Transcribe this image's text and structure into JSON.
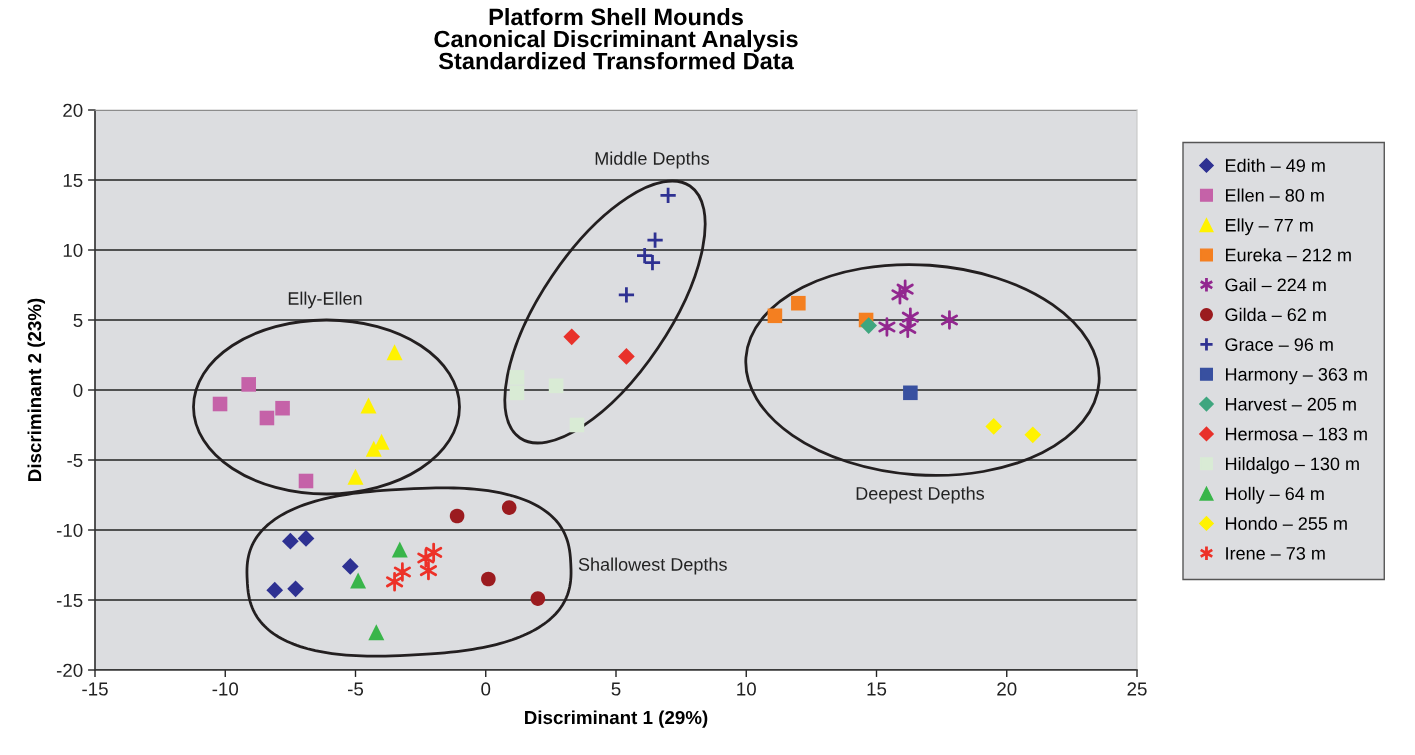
{
  "chart_data": {
    "type": "scatter",
    "title": "Platform Shell Mounds\nCanonical Discriminant Analysis\nStandardized Transformed Data",
    "xlabel": "Discriminant 1 (29%)",
    "ylabel": "Discriminant 2 (23%)",
    "xlim": [
      -15,
      25
    ],
    "xticks": [
      -15,
      -10,
      -5,
      0,
      5,
      10,
      15,
      20,
      25
    ],
    "ylim": [
      -20,
      20
    ],
    "yticks": [
      -20,
      -15,
      -10,
      -5,
      0,
      5,
      10,
      15,
      20
    ],
    "grid": "y",
    "legend": "right",
    "annotations": [
      "Elly-Ellen",
      "Middle Depths",
      "Deepest Depths",
      "Shallowest Depths"
    ],
    "series": [
      {
        "name": "Edith – 49 m",
        "color": "#2e3192",
        "marker": "diamond",
        "x": [
          -7.5,
          -6.9,
          -5.2,
          -8.1,
          -7.3
        ],
        "values": [
          -10.8,
          -10.6,
          -12.6,
          -14.3,
          -14.2
        ]
      },
      {
        "name": "Ellen – 80 m",
        "color": "#c562a8",
        "marker": "square",
        "x": [
          -9.1,
          -10.2,
          -7.8,
          -8.4,
          -6.9
        ],
        "values": [
          0.4,
          -1.0,
          -1.3,
          -2.0,
          -6.5
        ]
      },
      {
        "name": "Elly – 77 m",
        "color": "#fff200",
        "marker": "triangle",
        "x": [
          -3.5,
          -4.5,
          -4.0,
          -4.3,
          -5.0
        ],
        "values": [
          2.7,
          -1.1,
          -3.7,
          -4.2,
          -6.2
        ]
      },
      {
        "name": "Eureka – 212 m",
        "color": "#f47f20",
        "marker": "square",
        "x": [
          11.1,
          12.0,
          14.6
        ],
        "values": [
          5.3,
          6.2,
          5.0
        ]
      },
      {
        "name": "Gail – 224 m",
        "color": "#92278f",
        "marker": "cross",
        "x": [
          15.9,
          16.1,
          16.3,
          15.4,
          16.2,
          17.8
        ],
        "values": [
          6.8,
          7.2,
          5.2,
          4.5,
          4.4,
          5.0
        ]
      },
      {
        "name": "Gilda – 62 m",
        "color": "#9b1b1f",
        "marker": "circle",
        "x": [
          -1.1,
          0.9,
          0.1,
          2.0
        ],
        "values": [
          -9.0,
          -8.4,
          -13.5,
          -14.9
        ]
      },
      {
        "name": "Grace – 96 m",
        "color": "#2e3192",
        "marker": "cross",
        "x": [
          7.0,
          6.5,
          6.1,
          6.4,
          5.4
        ],
        "values": [
          13.9,
          10.7,
          9.6,
          9.1,
          6.8
        ]
      },
      {
        "name": "Harmony – 363 m",
        "color": "#3850a0",
        "marker": "square",
        "x": [
          16.3
        ],
        "values": [
          -0.2
        ]
      },
      {
        "name": "Harvest – 205 m",
        "color": "#3fa67f",
        "marker": "diamond",
        "x": [
          14.7
        ],
        "values": [
          4.6
        ]
      },
      {
        "name": "Hermosa – 183 m",
        "color": "#e8312a",
        "marker": "diamond",
        "x": [
          3.3,
          5.4
        ],
        "values": [
          3.8,
          2.4
        ]
      },
      {
        "name": "Hildalgo – 130 m",
        "color": "#d9ebd5",
        "marker": "square",
        "x": [
          1.2,
          1.2,
          2.7,
          3.5
        ],
        "values": [
          0.9,
          -0.2,
          0.3,
          -2.5
        ]
      },
      {
        "name": "Holly – 64 m",
        "color": "#39b54a",
        "marker": "triangle",
        "x": [
          -3.3,
          -4.9,
          -4.2
        ],
        "values": [
          -11.4,
          -13.6,
          -17.3
        ]
      },
      {
        "name": "Hondo – 255 m",
        "color": "#fff200",
        "marker": "diamond",
        "x": [
          19.5,
          21.0
        ],
        "values": [
          -2.6,
          -3.2
        ]
      },
      {
        "name": "Irene – 73 m",
        "color": "#ed3128",
        "marker": "cross",
        "x": [
          -2.0,
          -2.3,
          -2.2,
          -3.2,
          -3.5
        ],
        "values": [
          -11.6,
          -12.0,
          -12.9,
          -13.0,
          -13.7
        ]
      }
    ]
  }
}
